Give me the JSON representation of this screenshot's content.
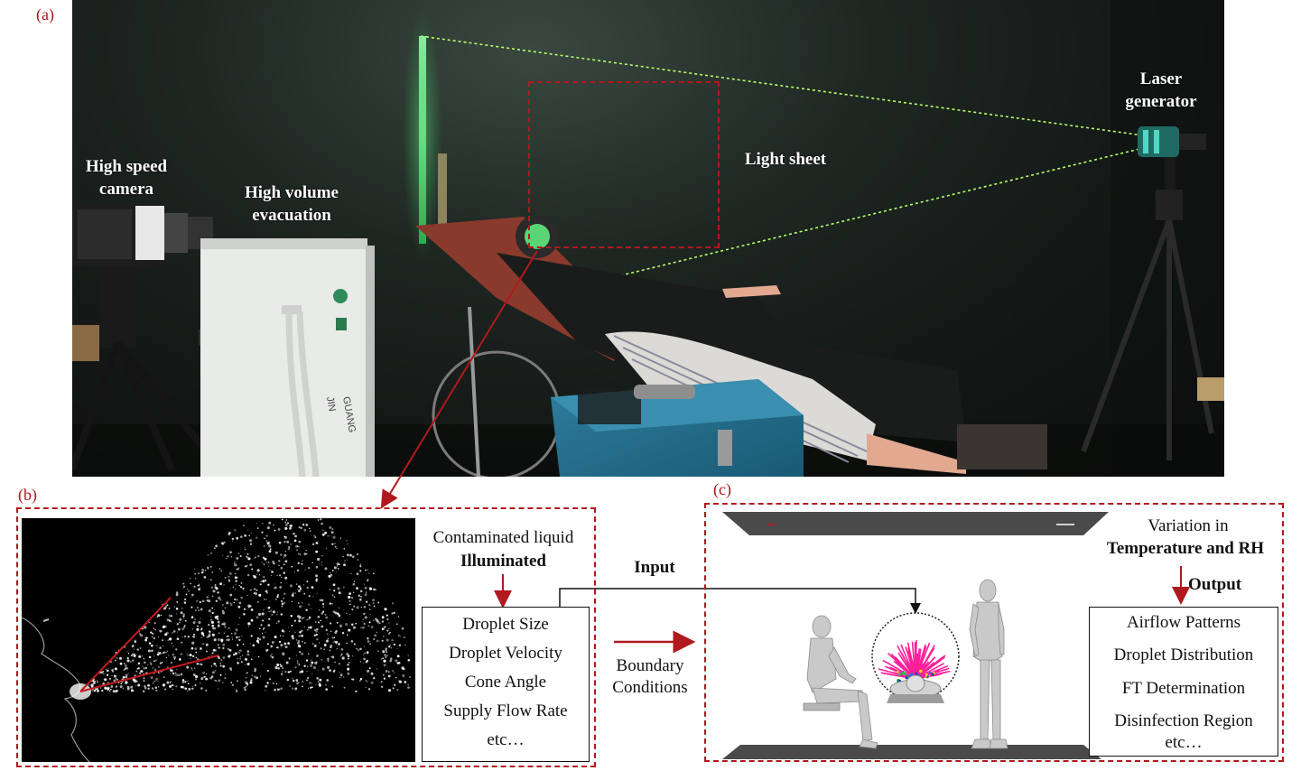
{
  "panel_labels": {
    "a": "(a)",
    "b": "(b)",
    "c": "(c)"
  },
  "panel_a": {
    "camera_label": [
      "High speed",
      "camera"
    ],
    "evacuation_label": [
      "High volume",
      "evacuation"
    ],
    "light_sheet_label": "Light sheet",
    "laser_label": [
      "Laser",
      "generator"
    ],
    "evacuation_device_text": [
      "JIN",
      "GUANG"
    ]
  },
  "panel_b": {
    "contaminated_line1": "Contaminated liquid",
    "contaminated_line2": "Illuminated",
    "list_items": [
      "Droplet Size",
      "Droplet Velocity",
      "Cone Angle",
      "Supply Flow Rate",
      "etc…"
    ]
  },
  "connector": {
    "input_label": "Input",
    "boundary_line1": "Boundary",
    "boundary_line2": "Conditions"
  },
  "panel_c": {
    "variation_line1": "Variation in",
    "variation_line2": "Temperature and RH",
    "output_label": "Output",
    "list_items": [
      "Airflow Patterns",
      "Droplet Distribution",
      "FT Determination",
      "Disinfection Region",
      "etc…"
    ]
  },
  "colors": {
    "accent_red": "#b0191e",
    "laser_green": "#4cff7a",
    "photo_background": "#161b18"
  }
}
